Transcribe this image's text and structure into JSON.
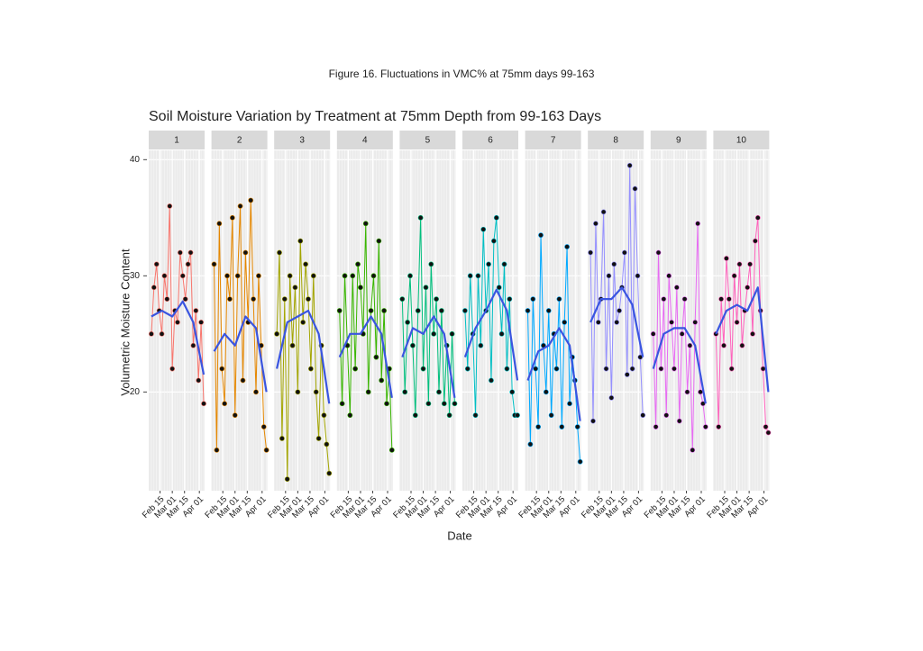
{
  "caption": "Figure 16. Fluctuations in VMC% at 75mm days 99-163",
  "chart_data": {
    "type": "line",
    "title": "Soil Moisture Variation by Treatment at 75mm Depth from 99-163 Days",
    "xlabel": "Date",
    "ylabel": "Volumetric Moisture Content",
    "ylim": [
      11.5,
      40.8
    ],
    "yticks": [
      20,
      30,
      40
    ],
    "xlim": [
      33,
      97
    ],
    "xticks": [
      {
        "value": 46,
        "label": "Feb 15"
      },
      {
        "value": 60,
        "label": "Mar 01"
      },
      {
        "value": 74,
        "label": "Mar 15"
      },
      {
        "value": 91,
        "label": "Apr 01"
      }
    ],
    "grid": true,
    "x": [
      36,
      39,
      42,
      45,
      48,
      51,
      54,
      57,
      60,
      63,
      66,
      69,
      72,
      75,
      78,
      81,
      84,
      87,
      90,
      93,
      96
    ],
    "smooth_x": [
      36,
      48,
      60,
      72,
      84,
      96
    ],
    "smooth_color": "#3a55e0",
    "panels": [
      {
        "name": "1",
        "color": "#f8766d",
        "values": [
          25,
          29,
          31,
          27,
          25,
          30,
          28,
          36,
          22,
          27,
          26,
          32,
          30,
          28,
          31,
          32,
          24,
          27,
          21,
          26,
          19
        ],
        "smooth": [
          26.5,
          27,
          26.5,
          27.8,
          26,
          21.5
        ]
      },
      {
        "name": "2",
        "color": "#e58700",
        "values": [
          31,
          15,
          34.5,
          22,
          19,
          30,
          28,
          35,
          18,
          30,
          36,
          21,
          32,
          26,
          36.5,
          28,
          20,
          30,
          24,
          17,
          15
        ],
        "smooth": [
          23.5,
          25,
          24,
          26.5,
          25.5,
          20
        ]
      },
      {
        "name": "3",
        "color": "#a3a500",
        "values": [
          25,
          32,
          16,
          28,
          12.5,
          30,
          24,
          29,
          20,
          33,
          26,
          31,
          28,
          22,
          30,
          20,
          16,
          24,
          18,
          15.5,
          13
        ],
        "smooth": [
          22,
          26,
          26.5,
          27,
          25,
          19
        ]
      },
      {
        "name": "4",
        "color": "#39b600",
        "values": [
          27,
          19,
          30,
          24,
          18,
          30,
          22,
          31,
          29,
          25,
          34.5,
          20,
          27,
          30,
          23,
          33,
          21,
          27,
          19,
          22,
          15
        ],
        "smooth": [
          23,
          25,
          25,
          26.5,
          25,
          19.5
        ]
      },
      {
        "name": "5",
        "color": "#00bf7d",
        "values": [
          28,
          20,
          26,
          30,
          24,
          18,
          27,
          35,
          22,
          29,
          19,
          31,
          25,
          28,
          20,
          27,
          19,
          24,
          18,
          25,
          19
        ],
        "smooth": [
          23,
          25.5,
          25,
          26.5,
          25,
          19.5
        ]
      },
      {
        "name": "6",
        "color": "#00bfc4",
        "values": [
          27,
          22,
          30,
          25,
          18,
          30,
          24,
          34,
          27,
          31,
          21,
          33,
          35,
          29,
          25,
          31,
          22,
          28,
          20,
          18,
          18
        ],
        "smooth": [
          23,
          25.5,
          27,
          28.8,
          27,
          21
        ]
      },
      {
        "name": "7",
        "color": "#00a9ff",
        "values": [
          27,
          15.5,
          28,
          22,
          17,
          33.5,
          24,
          20,
          27,
          18,
          25,
          22,
          28,
          17,
          26,
          32.5,
          19,
          23,
          21,
          17,
          14
        ],
        "smooth": [
          21,
          23.5,
          24,
          25.5,
          24,
          17.5
        ]
      },
      {
        "name": "8",
        "color": "#9590ff",
        "values": [
          32,
          17.5,
          34.5,
          26,
          28,
          35.5,
          22,
          30,
          19.5,
          31,
          26,
          27,
          29,
          32,
          21.5,
          39.5,
          22,
          37.5,
          30,
          23,
          18
        ],
        "smooth": [
          26,
          28,
          28,
          29,
          27.5,
          23
        ]
      },
      {
        "name": "9",
        "color": "#e76bf3",
        "values": [
          25,
          17,
          32,
          22,
          28,
          18,
          30,
          26,
          22,
          29,
          17.5,
          25,
          28,
          20,
          24,
          15,
          26,
          34.5,
          20,
          19,
          17
        ],
        "smooth": [
          22,
          25,
          25.5,
          25.5,
          24,
          19
        ]
      },
      {
        "name": "10",
        "color": "#ff62bc",
        "values": [
          25,
          17,
          28,
          24,
          31.5,
          28,
          22,
          30,
          26,
          31,
          24,
          27,
          29,
          31,
          25,
          33,
          35,
          27,
          22,
          17,
          16.5
        ],
        "smooth": [
          25,
          27,
          27.5,
          27,
          29,
          20
        ]
      }
    ]
  }
}
